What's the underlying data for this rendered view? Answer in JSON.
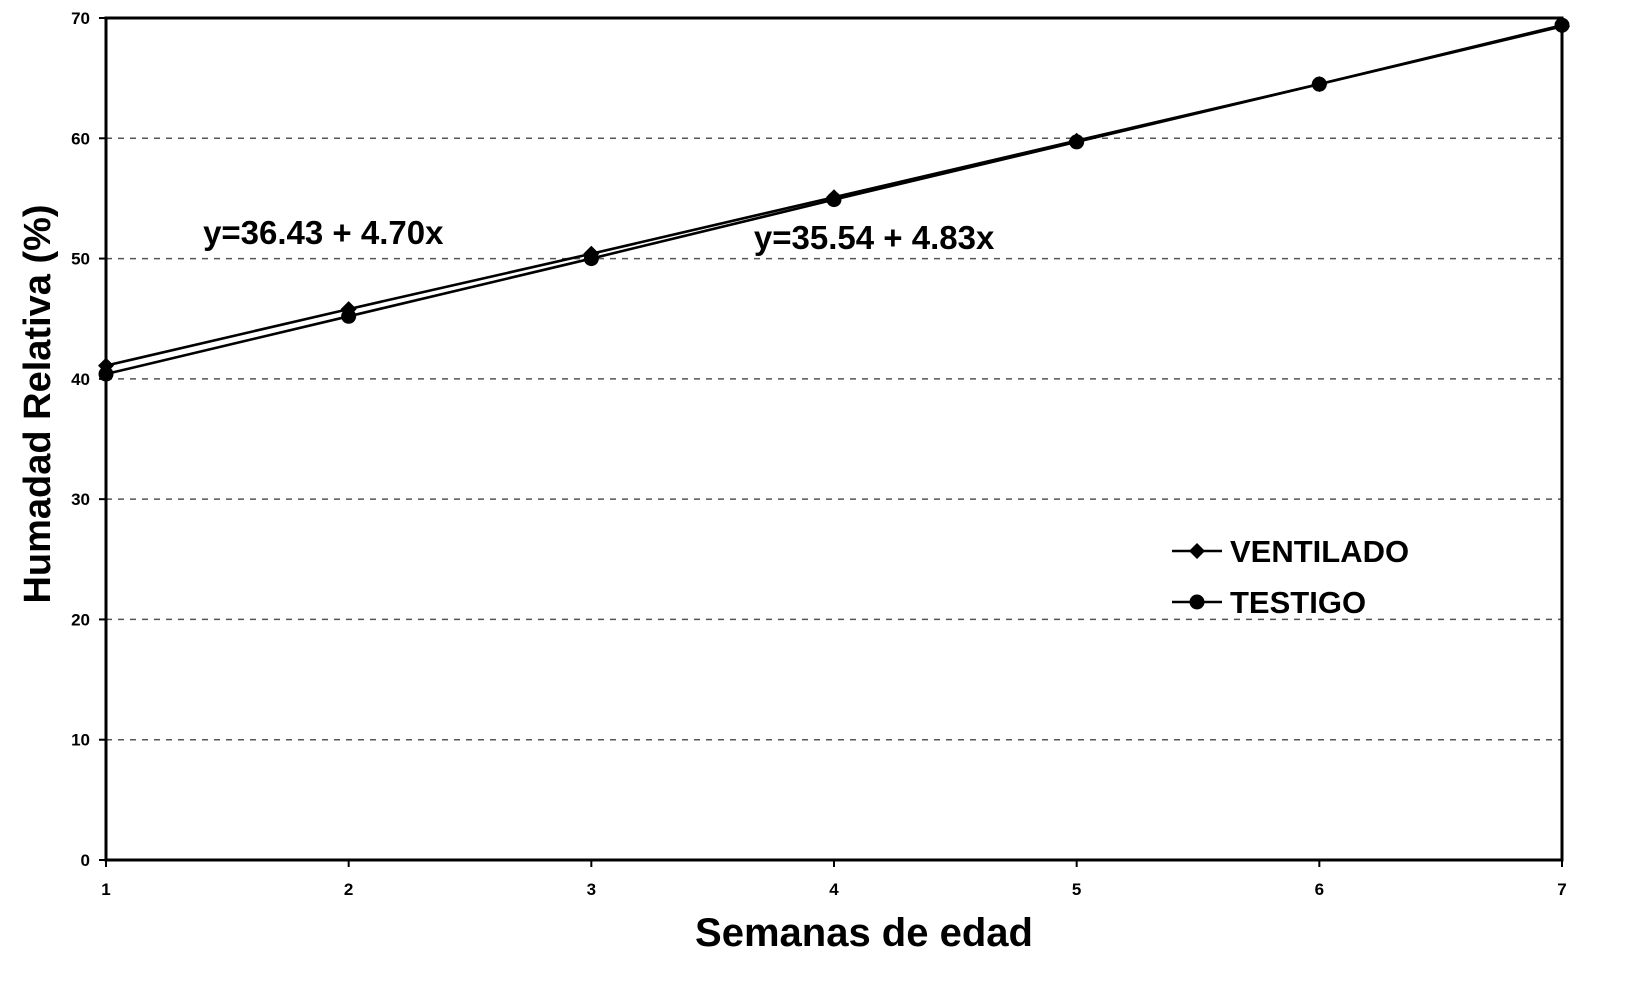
{
  "chart_data": {
    "type": "line",
    "title": "",
    "xlabel": "Semanas de edad",
    "ylabel": "Humadad Relativa (%)",
    "x": [
      1,
      2,
      3,
      4,
      5,
      6,
      7
    ],
    "xlim": [
      1,
      7
    ],
    "ylim": [
      0,
      70
    ],
    "yticks": [
      0,
      10,
      20,
      30,
      40,
      50,
      60,
      70
    ],
    "xtick_labels": [
      "1",
      "2",
      "3",
      "4",
      "5",
      "6",
      "7"
    ],
    "ytick_labels": [
      "0",
      "10",
      "20",
      "30",
      "40",
      "50",
      "60",
      "70"
    ],
    "grid": true,
    "grid_style": "dashed-horizontal",
    "legend_position": "right",
    "series": [
      {
        "name": "VENTILADO",
        "marker": "diamond",
        "color": "#000000",
        "values": [
          41.1,
          45.8,
          50.4,
          55.1,
          59.8,
          64.5,
          69.3
        ]
      },
      {
        "name": "TESTIGO",
        "marker": "circle",
        "color": "#000000",
        "values": [
          40.4,
          45.2,
          50.0,
          54.9,
          59.7,
          64.5,
          69.4
        ]
      }
    ],
    "annotations": [
      {
        "text": "y=36.43 + 4.70x",
        "x": 1.4,
        "y": 51.2
      },
      {
        "text": "y=35.54 + 4.83x",
        "x": 3.67,
        "y": 50.8
      }
    ]
  }
}
